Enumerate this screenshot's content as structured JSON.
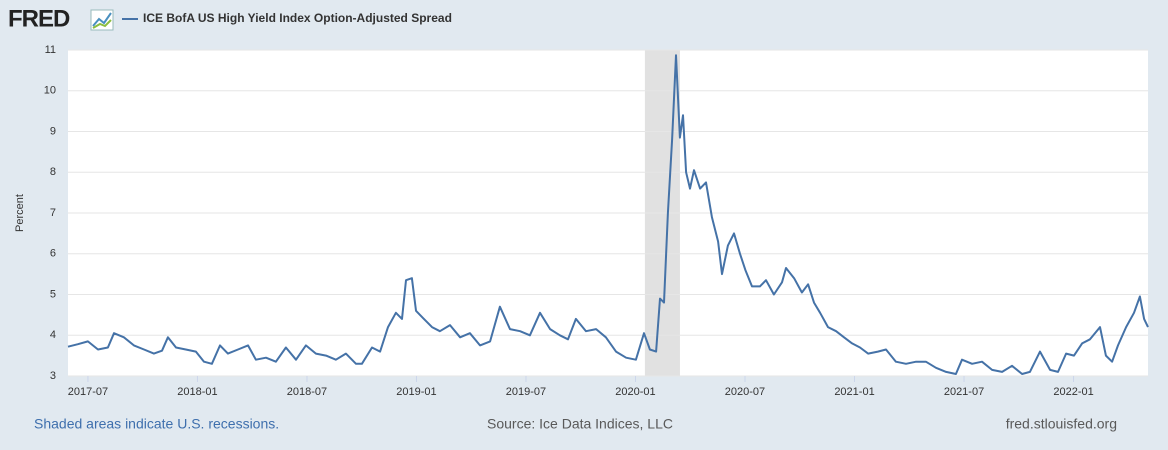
{
  "logo": "FRED",
  "chart_data": {
    "type": "line",
    "series": [
      {
        "name": "ICE BofA US High Yield Index Option-Adjusted Spread",
        "color": "#4572a7",
        "values": [
          3.72,
          3.78,
          3.85,
          3.65,
          3.7,
          4.05,
          3.95,
          3.75,
          3.65,
          3.55,
          3.62,
          3.95,
          3.7,
          3.65,
          3.6,
          3.35,
          3.3,
          3.75,
          3.55,
          3.65,
          3.75,
          3.4,
          3.45,
          3.35,
          3.7,
          3.4,
          3.75,
          3.55,
          3.5,
          3.4,
          3.55,
          3.3,
          3.3,
          3.7,
          3.6,
          4.2,
          4.55,
          4.4,
          5.35,
          5.4,
          4.6,
          4.4,
          4.2,
          4.1,
          4.25,
          3.95,
          4.05,
          3.75,
          3.85,
          4.7,
          4.15,
          4.1,
          4.0,
          4.55,
          4.15,
          4.0,
          3.9,
          4.4,
          4.1,
          4.15,
          3.95,
          3.6,
          3.45,
          3.4,
          4.05,
          3.65,
          3.6,
          4.9,
          4.8,
          7.0,
          8.8,
          10.87,
          8.85,
          9.4,
          8.0,
          7.6,
          8.05,
          7.6,
          7.75,
          6.9,
          6.3,
          5.5,
          6.2,
          6.5,
          6.0,
          5.6,
          5.2,
          5.2,
          5.35,
          5.0,
          5.3,
          5.65,
          5.4,
          5.05,
          5.25,
          4.8,
          4.55,
          4.2,
          4.1,
          3.95,
          3.8,
          3.7,
          3.55,
          3.6,
          3.65,
          3.35,
          3.3,
          3.35,
          3.35,
          3.2,
          3.1,
          3.05,
          3.4,
          3.3,
          3.35,
          3.15,
          3.1,
          3.25,
          3.05,
          3.1,
          3.6,
          3.15,
          3.1,
          3.55,
          3.5,
          3.8,
          3.9,
          4.2,
          3.5,
          3.35,
          3.75,
          4.2,
          4.55,
          4.95,
          4.4,
          4.2
        ]
      }
    ],
    "x": [
      2017.409,
      2017.454,
      2017.5,
      2017.546,
      2017.591,
      2017.619,
      2017.664,
      2017.71,
      2017.756,
      2017.801,
      2017.838,
      2017.865,
      2017.902,
      2017.947,
      2017.993,
      2018.03,
      2018.066,
      2018.103,
      2018.139,
      2018.185,
      2018.231,
      2018.267,
      2018.313,
      2018.358,
      2018.404,
      2018.45,
      2018.495,
      2018.541,
      2018.587,
      2018.632,
      2018.678,
      2018.724,
      2018.751,
      2018.797,
      2018.834,
      2018.87,
      2018.906,
      2018.934,
      2018.952,
      2018.979,
      2018.998,
      2019.034,
      2019.071,
      2019.107,
      2019.153,
      2019.199,
      2019.244,
      2019.29,
      2019.336,
      2019.381,
      2019.427,
      2019.473,
      2019.518,
      2019.564,
      2019.61,
      2019.655,
      2019.692,
      2019.728,
      2019.774,
      2019.82,
      2019.865,
      2019.911,
      2019.957,
      2020.002,
      2020.039,
      2020.066,
      2020.094,
      2020.112,
      2020.13,
      2020.148,
      2020.167,
      2020.185,
      2020.203,
      2020.217,
      2020.231,
      2020.249,
      2020.267,
      2020.295,
      2020.322,
      2020.349,
      2020.377,
      2020.395,
      2020.422,
      2020.45,
      2020.477,
      2020.502,
      2020.532,
      2020.568,
      2020.596,
      2020.632,
      2020.669,
      2020.687,
      2020.724,
      2020.76,
      2020.788,
      2020.815,
      2020.843,
      2020.879,
      2020.916,
      2020.952,
      2020.989,
      2021.025,
      2021.062,
      2021.107,
      2021.144,
      2021.189,
      2021.235,
      2021.281,
      2021.326,
      2021.372,
      2021.418,
      2021.463,
      2021.491,
      2021.537,
      2021.582,
      2021.628,
      2021.674,
      2021.719,
      2021.765,
      2021.801,
      2021.847,
      2021.893,
      2021.929,
      2021.966,
      2022.002,
      2022.039,
      2022.075,
      2022.121,
      2022.148,
      2022.176,
      2022.203,
      2022.24,
      2022.276,
      2022.303,
      2022.322,
      2022.34
    ],
    "recession": [
      2020.043,
      2020.203
    ],
    "xlim": [
      2017.409,
      2022.34
    ],
    "xticks": [
      {
        "value": 2017.5,
        "label": "2017-07"
      },
      {
        "value": 2018.0,
        "label": "2018-01"
      },
      {
        "value": 2018.5,
        "label": "2018-07"
      },
      {
        "value": 2019.0,
        "label": "2019-01"
      },
      {
        "value": 2019.5,
        "label": "2019-07"
      },
      {
        "value": 2020.0,
        "label": "2020-01"
      },
      {
        "value": 2020.5,
        "label": "2020-07"
      },
      {
        "value": 2021.0,
        "label": "2021-01"
      },
      {
        "value": 2021.5,
        "label": "2021-07"
      },
      {
        "value": 2022.0,
        "label": "2022-01"
      }
    ],
    "ylim": [
      3,
      11
    ],
    "yticks": [
      3,
      4,
      5,
      6,
      7,
      8,
      9,
      10,
      11
    ],
    "ylabel": "Percent",
    "grid": true
  },
  "footer": {
    "note": "Shaded areas indicate U.S. recessions.",
    "source": "Source: Ice Data Indices, LLC",
    "site": "fred.stlouisfed.org"
  }
}
